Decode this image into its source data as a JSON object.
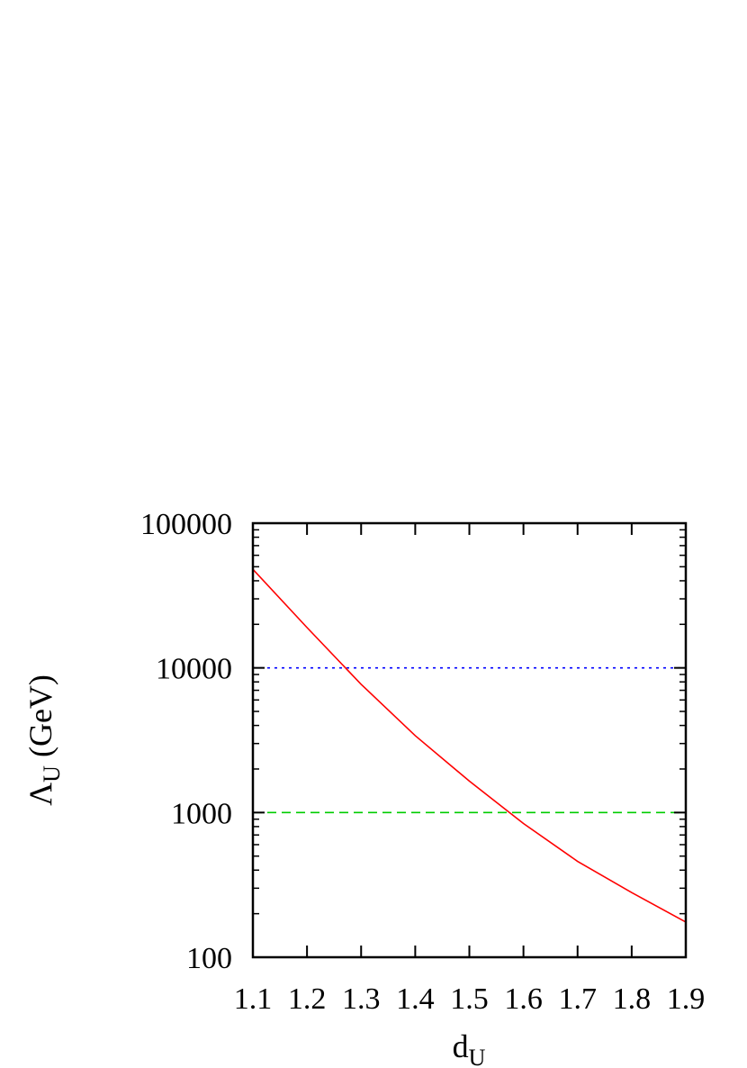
{
  "chart_data": {
    "type": "line",
    "title": "",
    "xlabel": {
      "main": "d",
      "sub": "U"
    },
    "ylabel": {
      "main": "Λ",
      "sub": "U",
      "rest": " (GeV)"
    },
    "xlim": [
      1.1,
      1.9
    ],
    "ylim": [
      100,
      100000
    ],
    "yscale": "log",
    "grid": false,
    "x_ticks": [
      "1.1",
      "1.2",
      "1.3",
      "1.4",
      "1.5",
      "1.6",
      "1.7",
      "1.8",
      "1.9"
    ],
    "y_ticks": [
      "100",
      "1000",
      "10000",
      "100000"
    ],
    "series": [
      {
        "color": "#ff0000",
        "style": "solid",
        "x": [
          1.1,
          1.2,
          1.3,
          1.4,
          1.5,
          1.6,
          1.7,
          1.8,
          1.9
        ],
        "y": [
          48000,
          19000,
          7700,
          3400,
          1650,
          840,
          460,
          280,
          175
        ]
      }
    ],
    "reference_lines": [
      {
        "y": 10000,
        "color": "#0000ff",
        "style": "dotted"
      },
      {
        "y": 1000,
        "color": "#00cc00",
        "style": "dashed"
      }
    ]
  }
}
